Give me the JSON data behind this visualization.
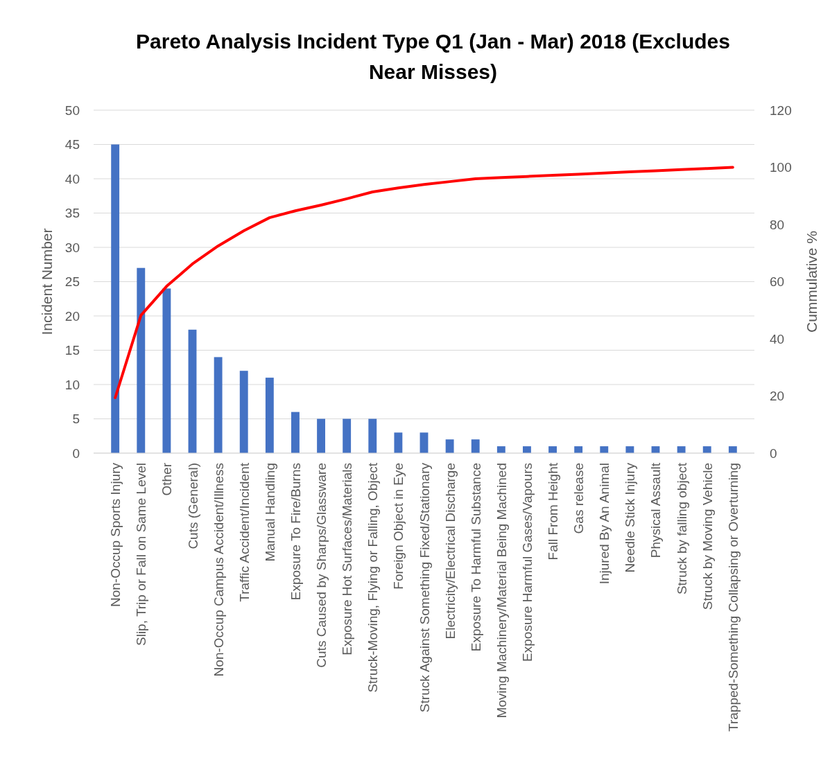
{
  "chart_data": {
    "type": "bar",
    "title": "Pareto Analysis Incident Type Q1 (Jan - Mar) 2018 (Excludes Near Misses)",
    "ylabel": "Incident Number",
    "y2label": "Cummulative %",
    "categories": [
      "Non-Occup Sports Injury",
      "Slip, Trip or Fall on Same Level",
      "Other",
      "Cuts (General)",
      "Non-Occup Campus Accident/Illness",
      "Traffic Accident/Incident",
      "Manual Handling",
      "Exposure To Fire/Burns",
      "Cuts Caused by Sharps/Glassware",
      "Exposure Hot Surfaces/Materials",
      "Struck-Moving, Flying or Falling, Object",
      "Foreign Object in Eye",
      "Struck Against Something Fixed/Stationary",
      "Electricity/Electrical Discharge",
      "Exposure To Harmful Substance",
      "Moving Machinery/Material Being Machined",
      "Exposure Harmful Gases/Vapours",
      "Fall From Height",
      "Gas release",
      "Injured By An Animal",
      "Needle Stick Injury",
      "Physical Assault",
      "Struck by falling object",
      "Struck by Moving Vehicle",
      "Trapped-Something Collapsing or Overturning"
    ],
    "series": [
      {
        "color": "#4472c4",
        "values": [
          45,
          27,
          24,
          18,
          14,
          12,
          11,
          6,
          5,
          5,
          5,
          3,
          3,
          2,
          2,
          1,
          1,
          1,
          1,
          1,
          1,
          1,
          1,
          1,
          1
        ]
      },
      {
        "type": "line",
        "axis": "y2",
        "color": "#ff0000",
        "values": [
          19.4,
          48.2,
          58.4,
          66.2,
          72.5,
          77.8,
          82.4,
          84.8,
          86.8,
          89,
          91.4,
          92.8,
          94,
          95,
          96,
          96.4,
          96.8,
          97.2,
          97.6,
          98,
          98.4,
          98.8,
          99.2,
          99.6,
          100
        ]
      }
    ],
    "ylim": [
      0,
      50
    ],
    "yticks": [
      0,
      5,
      10,
      15,
      20,
      25,
      30,
      35,
      40,
      45,
      50
    ],
    "y2lim": [
      0,
      120
    ],
    "y2ticks": [
      0,
      20,
      40,
      60,
      80,
      100,
      120
    ],
    "grid": "y",
    "marker": "none",
    "line_style": "solid"
  }
}
